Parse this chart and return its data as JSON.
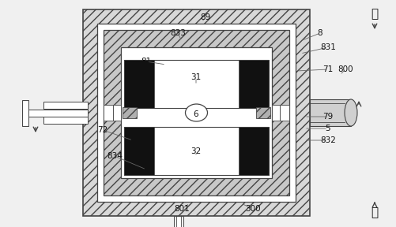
{
  "bg": "#f0f0f0",
  "lc": "#444444",
  "bk": "#111111",
  "wh": "#ffffff",
  "hatch_fc": "#d8d8d8",
  "hatch_fc2": "#c8c8c8",
  "gray_fc": "#b0b0b0",
  "fig_w": 5.01,
  "fig_h": 2.88,
  "dpi": 100
}
